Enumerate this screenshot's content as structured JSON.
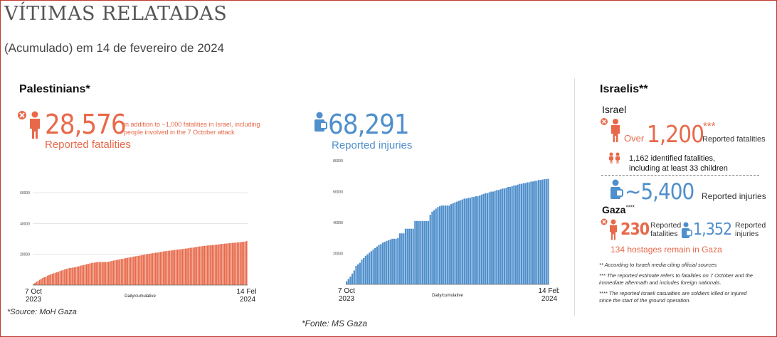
{
  "title": "VÍTIMAS RELATADAS",
  "subtitle": "(Acumulado) em 14 de fevereiro de 2024",
  "palestinians": {
    "heading": "Palestinians*",
    "fatalities_value": "28,576",
    "fatalities_note": "in addition to ~1,000 fatalities in Israel, including people involved in the 7 October attack",
    "fatalities_label": "Reported fatalities",
    "injuries_value": "68,291",
    "injuries_label": "Reported injuries",
    "source": "*Source: MoH Gaza"
  },
  "israelis": {
    "heading": "Israelis**",
    "israel_label": "Israel",
    "over_label": "Over",
    "fatalities_value": "1,200",
    "fatalities_stars": "***",
    "fatalities_label": "Reported fatalities",
    "identified_line1": "1,162 identified fatalities,",
    "identified_line2": "including at least 33 children",
    "injuries_value": "~5,400",
    "injuries_label": "Reported injuries",
    "gaza_label": "Gaza",
    "gaza_stars": "****",
    "gaza_fatalities_value": "230",
    "gaza_fatalities_label1": "Reported",
    "gaza_fatalities_label2": "fatalities",
    "gaza_injuries_value": "1,352",
    "gaza_injuries_label1": "Reported",
    "gaza_injuries_label2": "injuries",
    "hostages": "134 hostages remain in Gaza",
    "note1": "** According to Israeli media citing official sources",
    "note2": "*** The reported estimate refers to fatalities on 7 October and the immediate aftermath and includes foreign nationals.",
    "note3": "**** The reported Israeli casualties are soldiers killed or injured since the start of the ground operation."
  },
  "footer_source": "*Fonte: MS Gaza",
  "colors": {
    "fatalities": "#e8694a",
    "injuries": "#4f8fcc",
    "border": "#c0392b"
  },
  "icons": [
    "fatality-person-icon",
    "injured-person-icon",
    "children-icon"
  ],
  "chart_data": [
    {
      "type": "bar",
      "name": "fatalities",
      "x_start_label": [
        "7 Oct",
        "2023"
      ],
      "x_end_label": [
        "14 Feb",
        "2024"
      ],
      "xlabel": "Daily/cumulative",
      "ylim": [
        0,
        60000
      ],
      "yticks": [
        "20000",
        "40000",
        "60000"
      ],
      "grid": true,
      "color": "#e8694a",
      "values": [
        700,
        1400,
        2200,
        2700,
        3400,
        4100,
        4700,
        5100,
        5500,
        6100,
        6500,
        7000,
        7300,
        7700,
        8000,
        8300,
        8600,
        9100,
        9500,
        9800,
        10200,
        10500,
        10800,
        11100,
        11200,
        11300,
        11500,
        11800,
        12000,
        12200,
        12600,
        12800,
        13000,
        13300,
        13600,
        13800,
        14000,
        14400,
        14500,
        14600,
        14800,
        15000,
        15000,
        15000,
        15000,
        15000,
        15000,
        15000,
        15200,
        15400,
        15700,
        15900,
        16100,
        16300,
        16500,
        16700,
        16900,
        17100,
        17300,
        17500,
        17700,
        17900,
        18100,
        18300,
        18500,
        18700,
        18900,
        19000,
        19200,
        19400,
        19600,
        19800,
        20000,
        20200,
        20300,
        20500,
        20700,
        20900,
        21000,
        21100,
        21300,
        21500,
        21700,
        21900,
        22000,
        22200,
        22300,
        22400,
        22500,
        22600,
        22800,
        23000,
        23100,
        23200,
        23300,
        23400,
        23600,
        23700,
        23800,
        24000,
        24200,
        24300,
        24400,
        24600,
        24800,
        25000,
        25100,
        25200,
        25300,
        25500,
        25600,
        25700,
        25800,
        25900,
        26000,
        26100,
        26200,
        26300,
        26400,
        26600,
        26700,
        26800,
        26900,
        27000,
        27100,
        27200,
        27300,
        27400,
        27500,
        27600,
        27700,
        27800,
        27900,
        28000,
        28100,
        28300,
        28576
      ]
    },
    {
      "type": "bar",
      "name": "injuries",
      "x_start_label": [
        "7 Oct",
        "2023"
      ],
      "x_end_label": [
        "14 Feb",
        "2024"
      ],
      "xlabel": "Daily/cumulative",
      "ylim": [
        0,
        80000
      ],
      "yticks": [
        "20000",
        "40000",
        "60000",
        "80000"
      ],
      "grid": false,
      "color": "#4f8fcc",
      "values": [
        2000,
        3500,
        5000,
        7000,
        9000,
        12000,
        13000,
        14000,
        16000,
        17000,
        18500,
        19500,
        20500,
        21500,
        22500,
        23500,
        24500,
        25500,
        26000,
        27000,
        27500,
        28000,
        28500,
        29000,
        29500,
        29500,
        29500,
        30000,
        33000,
        33000,
        33000,
        36000,
        36000,
        36000,
        36000,
        36000,
        41000,
        41000,
        41000,
        41000,
        41000,
        41000,
        41000,
        41000,
        45000,
        47000,
        48000,
        49000,
        50000,
        50500,
        51000,
        51000,
        51000,
        51000,
        51000,
        52000,
        52500,
        53000,
        53500,
        54000,
        54500,
        55000,
        55500,
        55500,
        56000,
        56000,
        56500,
        56500,
        57000,
        57000,
        57500,
        58000,
        58500,
        59000,
        59000,
        59500,
        60000,
        60000,
        60500,
        61000,
        61000,
        61500,
        62000,
        62000,
        62500,
        63000,
        63000,
        63500,
        64000,
        64000,
        64500,
        65000,
        65000,
        65500,
        65500,
        66000,
        66000,
        66500,
        66500,
        67000,
        67000,
        67500,
        67500,
        67800,
        68000,
        68100,
        68291
      ]
    }
  ]
}
